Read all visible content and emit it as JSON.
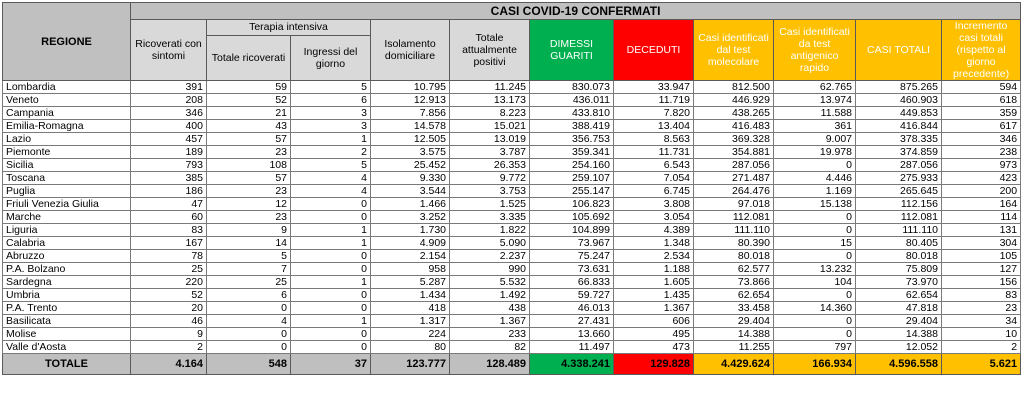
{
  "table": {
    "title": "CASI COVID-19 CONFERMATI",
    "headers": {
      "regione": "REGIONE",
      "ricoverati": "Ricoverati con sintomi",
      "terapia_group": "Terapia intensiva",
      "ti_totale": "Totale ricoverati",
      "ti_ingressi": "Ingressi del giorno",
      "isolamento": "Isolamento domiciliare",
      "positivi": "Totale attualmente positivi",
      "dimessi": "DIMESSI GUARITI",
      "deceduti": "DECEDUTI",
      "molecolare": "Casi identificati dal test molecolare",
      "antigenico": "Casi identificati da test antigenico rapido",
      "casi_totali": "CASI TOTALI",
      "incremento": "Incremento casi totali (rispetto al giorno precedente)"
    },
    "colors": {
      "header_gray": "#d9d9d9",
      "dimessi": "#00b050",
      "deceduti": "#ff0000",
      "orange": "#ffc000",
      "total_row": "#bfbfbf"
    },
    "rows": [
      [
        "Lombardia",
        "391",
        "59",
        "5",
        "10.795",
        "11.245",
        "830.073",
        "33.947",
        "812.500",
        "62.765",
        "875.265",
        "594"
      ],
      [
        "Veneto",
        "208",
        "52",
        "6",
        "12.913",
        "13.173",
        "436.011",
        "11.719",
        "446.929",
        "13.974",
        "460.903",
        "618"
      ],
      [
        "Campania",
        "346",
        "21",
        "3",
        "7.856",
        "8.223",
        "433.810",
        "7.820",
        "438.265",
        "11.588",
        "449.853",
        "359"
      ],
      [
        "Emilia-Romagna",
        "400",
        "43",
        "3",
        "14.578",
        "15.021",
        "388.419",
        "13.404",
        "416.483",
        "361",
        "416.844",
        "617"
      ],
      [
        "Lazio",
        "457",
        "57",
        "1",
        "12.505",
        "13.019",
        "356.753",
        "8.563",
        "369.328",
        "9.007",
        "378.335",
        "346"
      ],
      [
        "Piemonte",
        "189",
        "23",
        "2",
        "3.575",
        "3.787",
        "359.341",
        "11.731",
        "354.881",
        "19.978",
        "374.859",
        "238"
      ],
      [
        "Sicilia",
        "793",
        "108",
        "5",
        "25.452",
        "26.353",
        "254.160",
        "6.543",
        "287.056",
        "0",
        "287.056",
        "973"
      ],
      [
        "Toscana",
        "385",
        "57",
        "4",
        "9.330",
        "9.772",
        "259.107",
        "7.054",
        "271.487",
        "4.446",
        "275.933",
        "423"
      ],
      [
        "Puglia",
        "186",
        "23",
        "4",
        "3.544",
        "3.753",
        "255.147",
        "6.745",
        "264.476",
        "1.169",
        "265.645",
        "200"
      ],
      [
        "Friuli Venezia Giulia",
        "47",
        "12",
        "0",
        "1.466",
        "1.525",
        "106.823",
        "3.808",
        "97.018",
        "15.138",
        "112.156",
        "164"
      ],
      [
        "Marche",
        "60",
        "23",
        "0",
        "3.252",
        "3.335",
        "105.692",
        "3.054",
        "112.081",
        "0",
        "112.081",
        "114"
      ],
      [
        "Liguria",
        "83",
        "9",
        "1",
        "1.730",
        "1.822",
        "104.899",
        "4.389",
        "111.110",
        "0",
        "111.110",
        "131"
      ],
      [
        "Calabria",
        "167",
        "14",
        "1",
        "4.909",
        "5.090",
        "73.967",
        "1.348",
        "80.390",
        "15",
        "80.405",
        "304"
      ],
      [
        "Abruzzo",
        "78",
        "5",
        "0",
        "2.154",
        "2.237",
        "75.247",
        "2.534",
        "80.018",
        "0",
        "80.018",
        "105"
      ],
      [
        "P.A. Bolzano",
        "25",
        "7",
        "0",
        "958",
        "990",
        "73.631",
        "1.188",
        "62.577",
        "13.232",
        "75.809",
        "127"
      ],
      [
        "Sardegna",
        "220",
        "25",
        "1",
        "5.287",
        "5.532",
        "66.833",
        "1.605",
        "73.866",
        "104",
        "73.970",
        "156"
      ],
      [
        "Umbria",
        "52",
        "6",
        "0",
        "1.434",
        "1.492",
        "59.727",
        "1.435",
        "62.654",
        "0",
        "62.654",
        "83"
      ],
      [
        "P.A. Trento",
        "20",
        "0",
        "0",
        "418",
        "438",
        "46.013",
        "1.367",
        "33.458",
        "14.360",
        "47.818",
        "23"
      ],
      [
        "Basilicata",
        "46",
        "4",
        "1",
        "1.317",
        "1.367",
        "27.431",
        "606",
        "29.404",
        "0",
        "29.404",
        "34"
      ],
      [
        "Molise",
        "9",
        "0",
        "0",
        "224",
        "233",
        "13.660",
        "495",
        "14.388",
        "0",
        "14.388",
        "10"
      ],
      [
        "Valle d'Aosta",
        "2",
        "0",
        "0",
        "80",
        "82",
        "11.497",
        "473",
        "11.255",
        "797",
        "12.052",
        "2"
      ]
    ],
    "totals": [
      "TOTALE",
      "4.164",
      "548",
      "37",
      "123.777",
      "128.489",
      "4.338.241",
      "129.828",
      "4.429.624",
      "166.934",
      "4.596.558",
      "5.621"
    ]
  }
}
